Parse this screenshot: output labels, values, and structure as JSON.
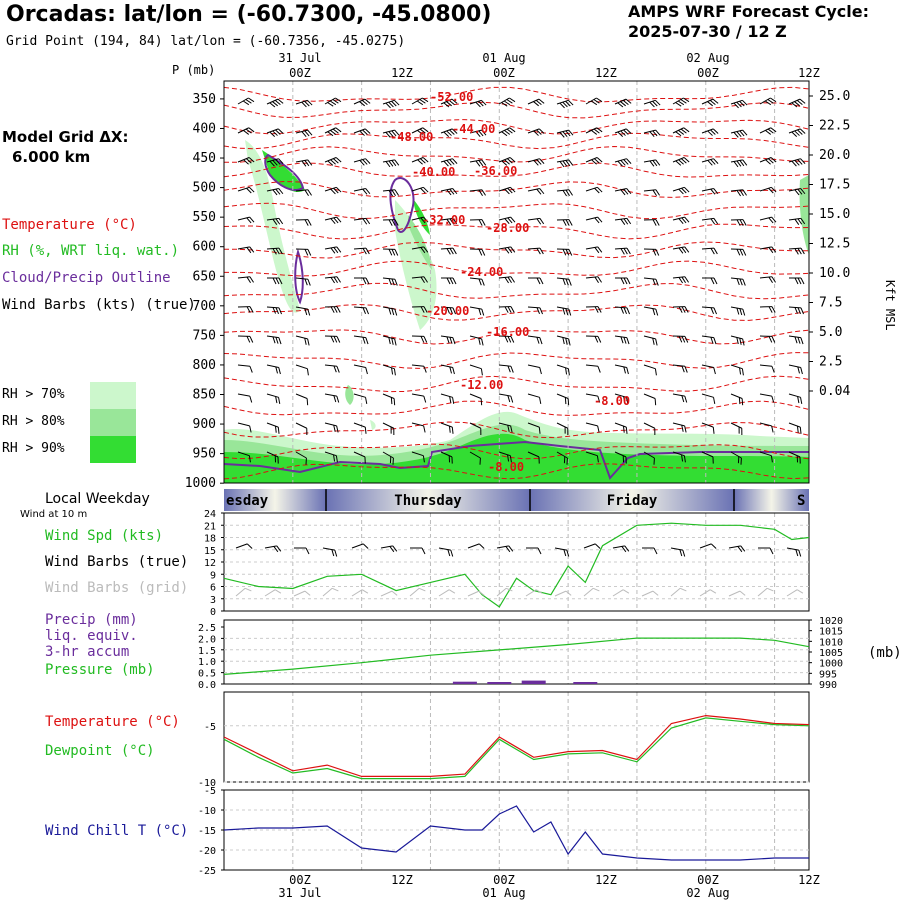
{
  "header": {
    "title": "Orcadas:  lat/lon = (-60.7300, -45.0800)",
    "subtitle": "Grid Point (194, 84) lat/lon = (-60.7356, -45.0275)",
    "cycle_line1": "AMPS WRF Forecast Cycle:",
    "cycle_line2": "2025-07-30 / 12  Z"
  },
  "legend": {
    "grid_label": "Model Grid ΔX:",
    "grid_value": "6.000 km",
    "temperature": "Temperature (°C)",
    "rh": "RH (%, WRT liq. wat.)",
    "cloud": "Cloud/Precip Outline",
    "wind": "Wind Barbs (kts) (true)",
    "rh_levels": [
      "RH > 70%",
      "RH > 80%",
      "RH > 90%"
    ],
    "rh_colors": [
      "#ccf7cc",
      "#99e699",
      "#33dd33"
    ]
  },
  "time_axis": {
    "top_dates": [
      "31 Jul",
      "01 Aug",
      "02 Aug"
    ],
    "hours": [
      "00Z",
      "12Z",
      "00Z",
      "12Z",
      "00Z",
      "12Z"
    ],
    "bottom_dates": [
      "31 Jul",
      "01 Aug",
      "02 Aug"
    ]
  },
  "weekday": {
    "title": "Local Weekday",
    "sublabel": "Wind at 10 m",
    "days": [
      "esday",
      "Thursday",
      "Friday",
      "S"
    ]
  },
  "sounding": {
    "p_label": "P (mb)",
    "p_ticks": [
      "350",
      "400",
      "450",
      "500",
      "550",
      "600",
      "650",
      "700",
      "750",
      "800",
      "850",
      "900",
      "950",
      "1000"
    ],
    "kft_ticks": [
      "25.0",
      "22.5",
      "20.0",
      "17.5",
      "15.0",
      "12.5",
      "10.0",
      "7.5",
      "5.0",
      "2.5",
      "0.04"
    ],
    "kft_label": "Kft MSL",
    "temp_labels": [
      "-52.00",
      "-48.00",
      "-44.00",
      "-40.00",
      "-36.00",
      "-32.00",
      "-28.00",
      "-24.00",
      "-20.00",
      "-16.00",
      "-12.00",
      "-8.00",
      "-8.00"
    ]
  },
  "panels": {
    "wind": {
      "labels": [
        "Wind Spd (kts)",
        "Wind Barbs (true)",
        "Wind Barbs (grid)"
      ],
      "y_ticks": [
        "24",
        "21",
        "18",
        "15",
        "12",
        "9",
        "6",
        "3",
        "0"
      ],
      "color": "#22bb22"
    },
    "precip": {
      "labels": [
        "Precip (mm)",
        "liq. equiv.",
        "3-hr accum",
        "Pressure (mb)"
      ],
      "y_ticks": [
        "2.5",
        "2.0",
        "1.5",
        "1.0",
        "0.5",
        "0.0"
      ],
      "y2_ticks": [
        "1020",
        "1015",
        "1010",
        "1005",
        "1000",
        "995",
        "990"
      ],
      "y2_label": "(mb)"
    },
    "temp": {
      "labels": [
        "Temperature (°C)",
        "Dewpoint (°C)"
      ],
      "y_ticks": [
        "-5",
        "-10"
      ]
    },
    "chill": {
      "labels": [
        "Wind Chill T (°C)"
      ],
      "y_ticks": [
        "-5",
        "-10",
        "-15",
        "-20",
        "-25"
      ]
    }
  },
  "chart_data": [
    {
      "type": "line",
      "title": "Wind Spd (kts)",
      "x_hours": [
        0,
        6,
        12,
        18,
        24,
        30,
        36,
        42,
        45,
        48,
        51,
        54,
        57,
        60,
        63,
        66,
        72,
        78,
        84,
        90,
        96,
        99,
        102
      ],
      "series": [
        {
          "name": "Wind Spd (kts)",
          "values": [
            8,
            6,
            5.5,
            8.5,
            9,
            5,
            7,
            9,
            4,
            1,
            8,
            5,
            4,
            11,
            7,
            16,
            21,
            21.5,
            21,
            21,
            20,
            17.5,
            18
          ]
        }
      ],
      "ylim": [
        0,
        24
      ]
    },
    {
      "type": "line",
      "title": "Pressure (mb)",
      "x_hours": [
        0,
        12,
        24,
        36,
        48,
        60,
        72,
        84,
        90,
        96,
        102
      ],
      "series": [
        {
          "name": "Pressure (mb)",
          "values": [
            994.5,
            997,
            1000,
            1003.5,
            1006,
            1008.5,
            1011.5,
            1011.5,
            1011.5,
            1010.5,
            1007.5
          ]
        }
      ],
      "ylim": [
        990,
        1020
      ]
    },
    {
      "type": "bar",
      "title": "Precip (mm)",
      "x_hours": [
        42,
        48,
        54,
        63
      ],
      "values": [
        0.1,
        0.05,
        0.15,
        0.08
      ],
      "ylim": [
        0,
        2.5
      ]
    },
    {
      "type": "line",
      "title": "Temperature / Dewpoint",
      "x_hours": [
        0,
        6,
        12,
        18,
        24,
        30,
        36,
        42,
        48,
        54,
        60,
        66,
        72,
        78,
        84,
        90,
        96,
        102
      ],
      "series": [
        {
          "name": "Temperature (°C)",
          "values": [
            -6,
            -7.5,
            -9,
            -8.5,
            -9.5,
            -9.5,
            -9.5,
            -9.3,
            -6,
            -7.8,
            -7.3,
            -7.2,
            -8,
            -4.8,
            -4.1,
            -4.4,
            -4.8,
            -4.9
          ]
        },
        {
          "name": "Dewpoint (°C)",
          "values": [
            -6.2,
            -7.8,
            -9.2,
            -8.8,
            -9.7,
            -9.7,
            -9.7,
            -9.5,
            -6.2,
            -8,
            -7.5,
            -7.4,
            -8.2,
            -5.2,
            -4.3,
            -4.6,
            -4.9,
            -5
          ]
        }
      ],
      "ylim": [
        -10,
        -2
      ]
    },
    {
      "type": "line",
      "title": "Wind Chill T (°C)",
      "x_hours": [
        0,
        6,
        12,
        18,
        24,
        30,
        36,
        42,
        45,
        48,
        51,
        54,
        57,
        60,
        63,
        66,
        72,
        78,
        84,
        90,
        96,
        102
      ],
      "series": [
        {
          "name": "Wind Chill T (°C)",
          "values": [
            -15,
            -14.5,
            -14.5,
            -14,
            -19.5,
            -20.5,
            -14,
            -15,
            -15,
            -11,
            -9,
            -15.5,
            -13,
            -21,
            -15.5,
            -21,
            -22,
            -22.5,
            -22.5,
            -22.5,
            -22,
            -22
          ]
        }
      ],
      "ylim": [
        -25,
        -5
      ]
    }
  ]
}
